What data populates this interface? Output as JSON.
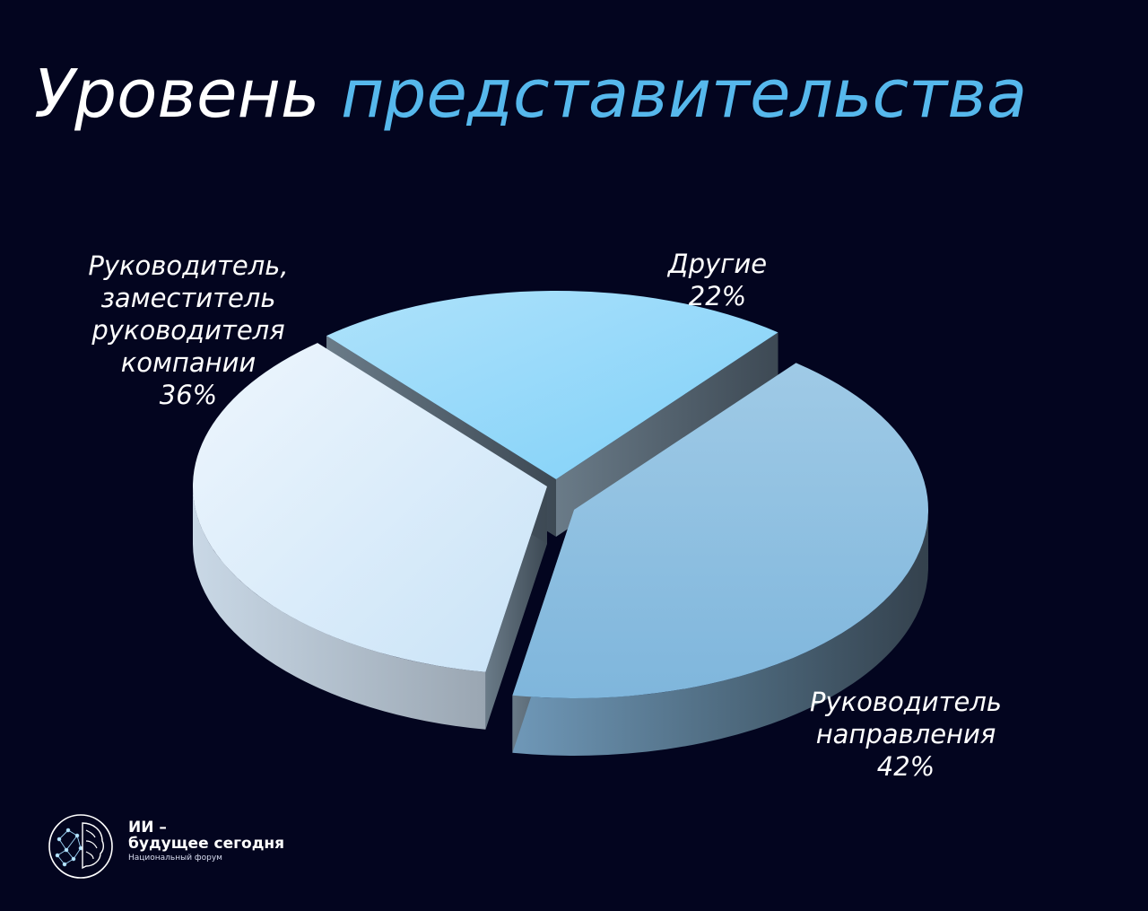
{
  "title": {
    "word1": "Уровень",
    "word2": "представительства"
  },
  "colors": {
    "background": "#03051f",
    "title_main": "#ffffff",
    "title_accent": "#56b8ec",
    "slice_company_head": "#d9ecfb",
    "slice_others": "#8fd5f9",
    "slice_direction_head": "#8ec0e0"
  },
  "chart_data": {
    "type": "pie",
    "style": "3d-exploded",
    "labels": [
      "Руководитель, заместитель руководителя компании",
      "Другие",
      "Руководитель направления"
    ],
    "values": [
      36,
      22,
      42
    ],
    "unit": "%",
    "data_labels": [
      {
        "lines": [
          "Руководитель,",
          "заместитель",
          "руководителя",
          "компании",
          "36%"
        ]
      },
      {
        "lines": [
          "Другие",
          "22%"
        ]
      },
      {
        "lines": [
          "Руководитель",
          "направления",
          "42%"
        ]
      }
    ]
  },
  "logo": {
    "line1": "ИИ –",
    "line2": "будущее сегодня",
    "line3": "Национальный форум",
    "icon": "brain-network-icon"
  }
}
